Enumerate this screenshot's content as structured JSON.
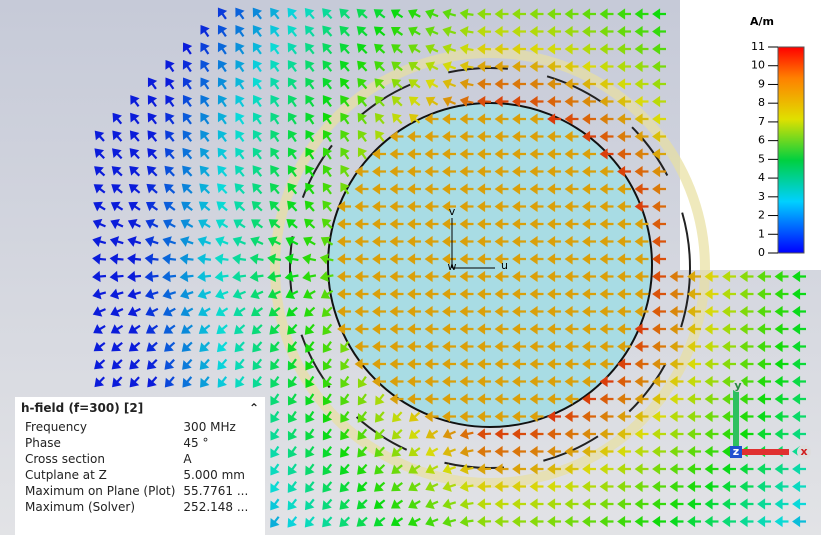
{
  "colorbar": {
    "title": "A/m",
    "ticks": [
      0,
      1,
      2,
      3,
      4,
      5,
      6,
      7,
      8,
      9,
      10,
      11
    ],
    "range": [
      0,
      11
    ]
  },
  "axes": {
    "u": "u",
    "v": "v",
    "w": "w"
  },
  "gizmo": {
    "x": "x",
    "y": "y",
    "z": "z"
  },
  "panel": {
    "title": "h-field (f=300) [2]",
    "rows": [
      [
        "Frequency",
        "300 MHz"
      ],
      [
        "Phase",
        "45 °"
      ],
      [
        "Cross section",
        "A"
      ],
      [
        "Cutplane at Z",
        "5.000 mm"
      ],
      [
        "Maximum on Plane (Plot)",
        "55.7761 ..."
      ],
      [
        "Maximum (Solver)",
        "252.148 ..."
      ]
    ]
  }
}
